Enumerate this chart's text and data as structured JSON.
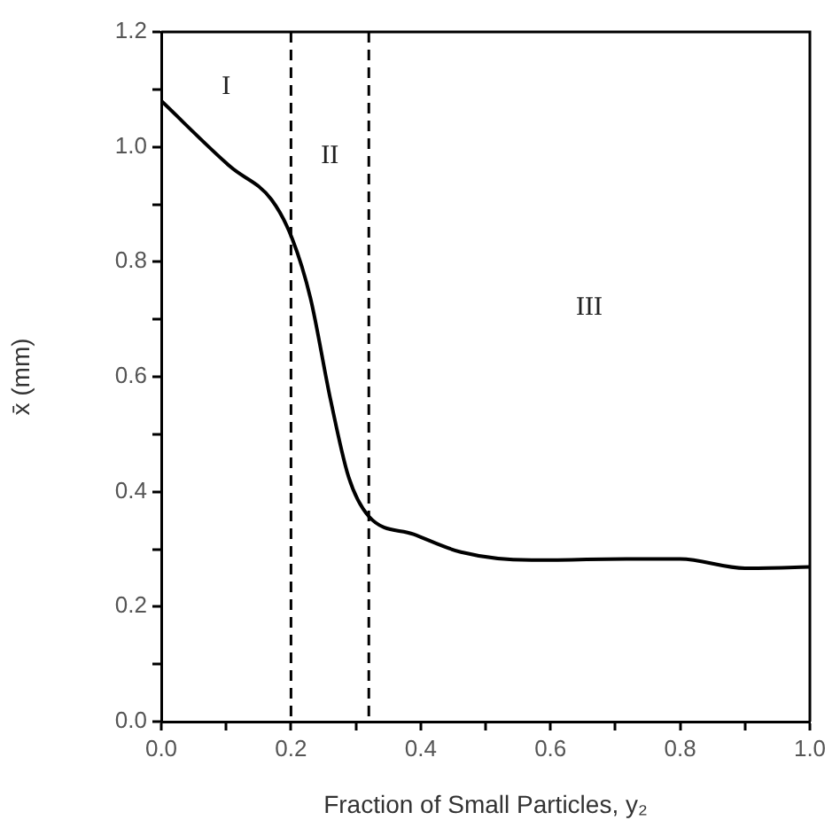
{
  "chart_data": {
    "type": "line",
    "xlabel": "Fraction of Small Particles, y₂",
    "ylabel": "x̄ (mm)",
    "x": [
      0,
      0.107,
      0.17,
      0.202,
      0.23,
      0.261,
      0.289,
      0.32,
      0.389,
      0.462,
      0.571,
      0.717,
      0.8,
      0.9,
      1.0
    ],
    "series": [
      {
        "color": "#000000",
        "values": [
          1.08,
          0.965,
          0.908,
          0.84,
          0.737,
          0.56,
          0.425,
          0.357,
          0.326,
          0.295,
          0.281,
          0.283,
          0.283,
          0.267,
          0.269
        ]
      }
    ],
    "xlim": [
      0,
      1
    ],
    "ylim": [
      0,
      1.2
    ],
    "xticks": [
      {
        "value": 0,
        "label": "0.0"
      },
      {
        "value": 0.1,
        "label": null
      },
      0.2,
      {
        "value": 0.3,
        "label": null
      },
      0.4,
      {
        "value": 0.5,
        "label": null
      },
      0.6,
      {
        "value": 0.7,
        "label": null
      },
      0.8,
      {
        "value": 0.9,
        "label": null
      },
      {
        "value": 1,
        "label": "1.0"
      }
    ],
    "yticks": [
      {
        "value": 0,
        "label": "0.0"
      },
      {
        "value": 0.1,
        "label": null
      },
      0.2,
      {
        "value": 0.3,
        "label": null
      },
      0.4,
      {
        "value": 0.5,
        "label": null
      },
      0.6,
      {
        "value": 0.7,
        "label": null
      },
      0.8,
      {
        "value": 0.9,
        "label": null
      },
      {
        "value": 1,
        "label": "1.0"
      },
      {
        "value": 1.1,
        "label": null
      },
      1.2
    ],
    "ref_lines": [
      {
        "axis": "x",
        "value": 0.2,
        "color": "#000000",
        "line_style": "dashed"
      },
      {
        "axis": "x",
        "value": 0.32,
        "color": "#000000",
        "line_style": "dashed"
      }
    ],
    "annotations": [
      "I",
      "II",
      "III"
    ],
    "grid": false,
    "legend": false,
    "marker": "none",
    "line_style": "solid"
  }
}
